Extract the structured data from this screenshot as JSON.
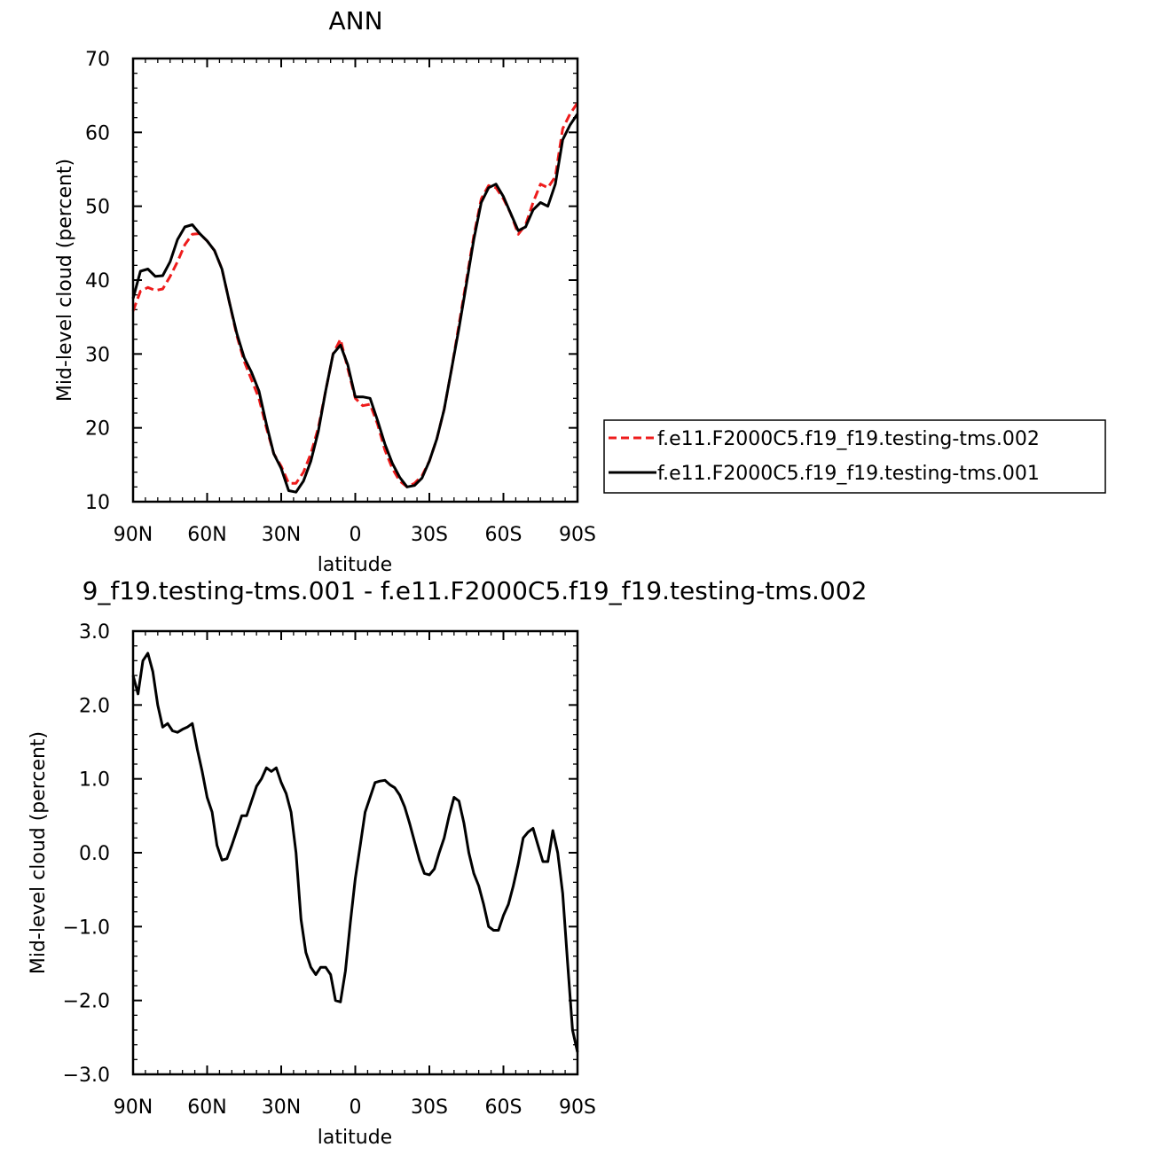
{
  "chart_data": [
    {
      "type": "line",
      "title": "ANN",
      "xlabel": "latitude",
      "ylabel": "Mid-level cloud (percent)",
      "xlim": [
        -90,
        90
      ],
      "ylim": [
        10,
        70
      ],
      "xticks": [
        -90,
        -60,
        -30,
        0,
        30,
        60,
        90
      ],
      "xtick_labels": [
        "90N",
        "60N",
        "30N",
        "0",
        "30S",
        "60S",
        "90S"
      ],
      "yticks": [
        10,
        20,
        30,
        40,
        50,
        60,
        70
      ],
      "ytick_labels": [
        "10",
        "20",
        "30",
        "40",
        "50",
        "60",
        "70"
      ],
      "legend_position": "right",
      "series": [
        {
          "name": "f.e11.F2000C5.f19_f19.testing-tms.002",
          "color": "#ee1c1c",
          "dash": "dashed",
          "x": [
            -90,
            -87,
            -84,
            -81,
            -78,
            -75,
            -72,
            -69,
            -66,
            -63,
            -60,
            -57,
            -54,
            -51,
            -48,
            -45,
            -42,
            -39,
            -36,
            -33,
            -30,
            -27,
            -24,
            -21,
            -18,
            -15,
            -12,
            -9,
            -6,
            -3,
            0,
            3,
            6,
            9,
            12,
            15,
            18,
            21,
            24,
            27,
            30,
            33,
            36,
            39,
            42,
            45,
            48,
            51,
            54,
            57,
            60,
            63,
            66,
            69,
            72,
            75,
            78,
            81,
            84,
            87,
            90
          ],
          "values": [
            35.8,
            38.5,
            39.0,
            38.6,
            38.8,
            40.5,
            42.5,
            44.8,
            46.2,
            46.3,
            45.3,
            44.0,
            41.5,
            37.0,
            32.5,
            29.0,
            26.5,
            24.0,
            20.0,
            16.5,
            14.8,
            12.5,
            12.5,
            14.0,
            16.5,
            20.0,
            25.0,
            30.0,
            32.0,
            28.0,
            24.0,
            23.0,
            23.2,
            20.5,
            17.0,
            14.5,
            12.8,
            12.0,
            12.5,
            13.5,
            15.5,
            18.5,
            22.5,
            28.0,
            34.0,
            40.0,
            46.0,
            51.0,
            52.8,
            52.5,
            51.0,
            49.0,
            46.2,
            47.5,
            50.5,
            53.0,
            52.5,
            54.0,
            60.5,
            62.5,
            64.0
          ]
        },
        {
          "name": "f.e11.F2000C5.f19_f19.testing-tms.001",
          "color": "#000000",
          "dash": "solid",
          "x": [
            -90,
            -87,
            -84,
            -81,
            -78,
            -75,
            -72,
            -69,
            -66,
            -63,
            -60,
            -57,
            -54,
            -51,
            -48,
            -45,
            -42,
            -39,
            -36,
            -33,
            -30,
            -27,
            -24,
            -21,
            -18,
            -15,
            -12,
            -9,
            -6,
            -3,
            0,
            3,
            6,
            9,
            12,
            15,
            18,
            21,
            24,
            27,
            30,
            33,
            36,
            39,
            42,
            45,
            48,
            51,
            54,
            57,
            60,
            63,
            66,
            69,
            72,
            75,
            78,
            81,
            84,
            87,
            90
          ],
          "values": [
            37.5,
            41.2,
            41.5,
            40.5,
            40.6,
            42.5,
            45.5,
            47.2,
            47.5,
            46.3,
            45.3,
            44.0,
            41.5,
            37.0,
            32.8,
            29.5,
            27.5,
            25.0,
            20.5,
            16.5,
            14.5,
            11.5,
            11.3,
            12.8,
            15.5,
            19.5,
            25.0,
            30.0,
            31.2,
            28.5,
            24.2,
            24.2,
            24.0,
            21.0,
            17.8,
            15.2,
            13.3,
            12.0,
            12.2,
            13.2,
            15.5,
            18.5,
            22.5,
            28.0,
            33.5,
            39.5,
            45.5,
            50.5,
            52.5,
            53.0,
            51.3,
            49.0,
            46.7,
            47.2,
            49.5,
            50.5,
            50.0,
            53.0,
            59.0,
            61.0,
            62.5
          ]
        }
      ]
    },
    {
      "type": "line",
      "title": "9_f19.testing-tms.001 - f.e11.F2000C5.f19_f19.testing-tms.002",
      "xlabel": "latitude",
      "ylabel": "Mid-level cloud (percent)",
      "xlim": [
        -90,
        90
      ],
      "ylim": [
        -3,
        3
      ],
      "xticks": [
        -90,
        -60,
        -30,
        0,
        30,
        60,
        90
      ],
      "xtick_labels": [
        "90N",
        "60N",
        "30N",
        "0",
        "30S",
        "60S",
        "90S"
      ],
      "yticks": [
        -3,
        -2,
        -1,
        0,
        1,
        2,
        3
      ],
      "ytick_labels": [
        "−3.0",
        "−2.0",
        "−1.0",
        "0.0",
        "1.0",
        "2.0",
        "3.0"
      ],
      "series": [
        {
          "color": "#000000",
          "dash": "solid",
          "x": [
            -90,
            -88,
            -86,
            -84,
            -82,
            -80,
            -78,
            -76,
            -74,
            -72,
            -70,
            -68,
            -66,
            -64,
            -62,
            -60,
            -58,
            -56,
            -54,
            -52,
            -50,
            -48,
            -46,
            -44,
            -42,
            -40,
            -38,
            -36,
            -34,
            -32,
            -30,
            -28,
            -26,
            -24,
            -22,
            -20,
            -18,
            -16,
            -14,
            -12,
            -10,
            -8,
            -6,
            -4,
            -2,
            0,
            2,
            4,
            6,
            8,
            10,
            12,
            14,
            16,
            18,
            20,
            22,
            24,
            26,
            28,
            30,
            32,
            34,
            36,
            38,
            40,
            42,
            44,
            46,
            48,
            50,
            52,
            54,
            56,
            58,
            60,
            62,
            64,
            66,
            68,
            70,
            72,
            74,
            76,
            78,
            80,
            82,
            84,
            86,
            88,
            90
          ],
          "values": [
            2.4,
            2.15,
            2.6,
            2.7,
            2.45,
            2.0,
            1.7,
            1.75,
            1.65,
            1.63,
            1.67,
            1.7,
            1.75,
            1.4,
            1.1,
            0.75,
            0.55,
            0.1,
            -0.1,
            -0.08,
            0.1,
            0.3,
            0.5,
            0.5,
            0.7,
            0.9,
            1.0,
            1.15,
            1.1,
            1.15,
            0.95,
            0.8,
            0.55,
            0.0,
            -0.9,
            -1.35,
            -1.55,
            -1.65,
            -1.55,
            -1.55,
            -1.65,
            -2.0,
            -2.02,
            -1.6,
            -0.95,
            -0.35,
            0.1,
            0.55,
            0.75,
            0.95,
            0.97,
            0.98,
            0.92,
            0.88,
            0.78,
            0.62,
            0.4,
            0.15,
            -0.1,
            -0.28,
            -0.3,
            -0.22,
            0.0,
            0.2,
            0.5,
            0.75,
            0.7,
            0.4,
            0.0,
            -0.28,
            -0.45,
            -0.7,
            -1.0,
            -1.05,
            -1.05,
            -0.85,
            -0.7,
            -0.45,
            -0.15,
            0.2,
            0.28,
            0.33,
            0.1,
            -0.12,
            -0.12,
            0.3,
            0.0,
            -0.55,
            -1.5,
            -2.4,
            -2.7
          ]
        }
      ]
    }
  ]
}
